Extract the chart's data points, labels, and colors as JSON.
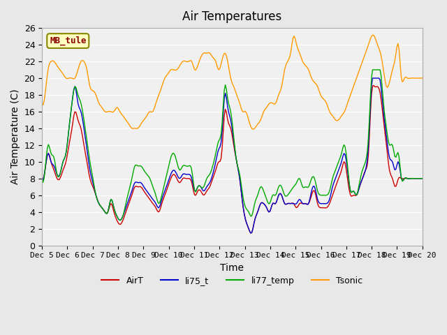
{
  "title": "Air Temperatures",
  "xlabel": "Time",
  "ylabel": "Air Temperature (C)",
  "ylim": [
    0,
    26
  ],
  "annotation": "MB_tule",
  "xtick_labels": [
    "Dec 5",
    "Dec 6",
    "Dec 7",
    "Dec 8",
    "Dec 9",
    "Dec 10",
    "Dec 11",
    "Dec 12",
    "Dec 13",
    "Dec 14",
    "Dec 15",
    "Dec 16",
    "Dec 17",
    "Dec 18",
    "Dec 19",
    "Dec 20"
  ],
  "series": [
    "AirT",
    "li75_t",
    "li77_temp",
    "Tsonic"
  ],
  "colors": {
    "AirT": "#cc0000",
    "li75_t": "#0000cc",
    "li77_temp": "#00aa00",
    "Tsonic": "#ff9900"
  },
  "bg_color": "#e8e8e8",
  "plot_bg_color": "#f0f0f0",
  "grid_color": "#ffffff",
  "n_points": 360
}
